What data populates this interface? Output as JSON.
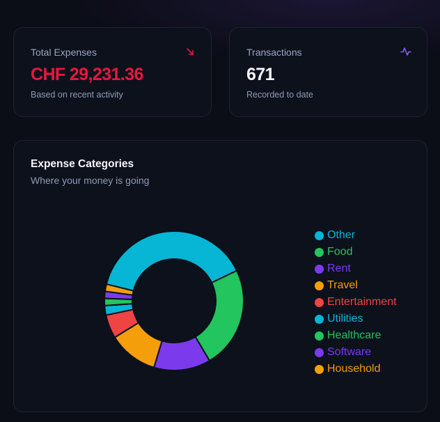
{
  "stats": {
    "expenses": {
      "label": "Total Expenses",
      "value": "CHF 29,231.36",
      "sub": "Based on recent activity",
      "icon": "trend-down-icon",
      "color": "#e8173f"
    },
    "transactions": {
      "label": "Transactions",
      "value": "671",
      "sub": "Recorded to date",
      "icon": "activity-icon",
      "color": "#f5f7fb"
    }
  },
  "categories": {
    "title": "Expense Categories",
    "subtitle": "Where your money is going"
  },
  "chart_data": {
    "type": "pie",
    "variant": "donut",
    "title": "Expense Categories",
    "legend_position": "right",
    "categories": [
      "Other",
      "Food",
      "Rent",
      "Travel",
      "Entertainment",
      "Utilities",
      "Healthcare",
      "Software",
      "Household"
    ],
    "values": [
      35.5,
      21.5,
      12.0,
      10.5,
      5.0,
      2.0,
      1.5,
      1.5,
      1.5
    ],
    "colors": [
      "#06b6d4",
      "#22c55e",
      "#7c3aed",
      "#f59e0b",
      "#ef4444",
      "#06b6d4",
      "#22c55e",
      "#7c3aed",
      "#f59e0b"
    ]
  }
}
